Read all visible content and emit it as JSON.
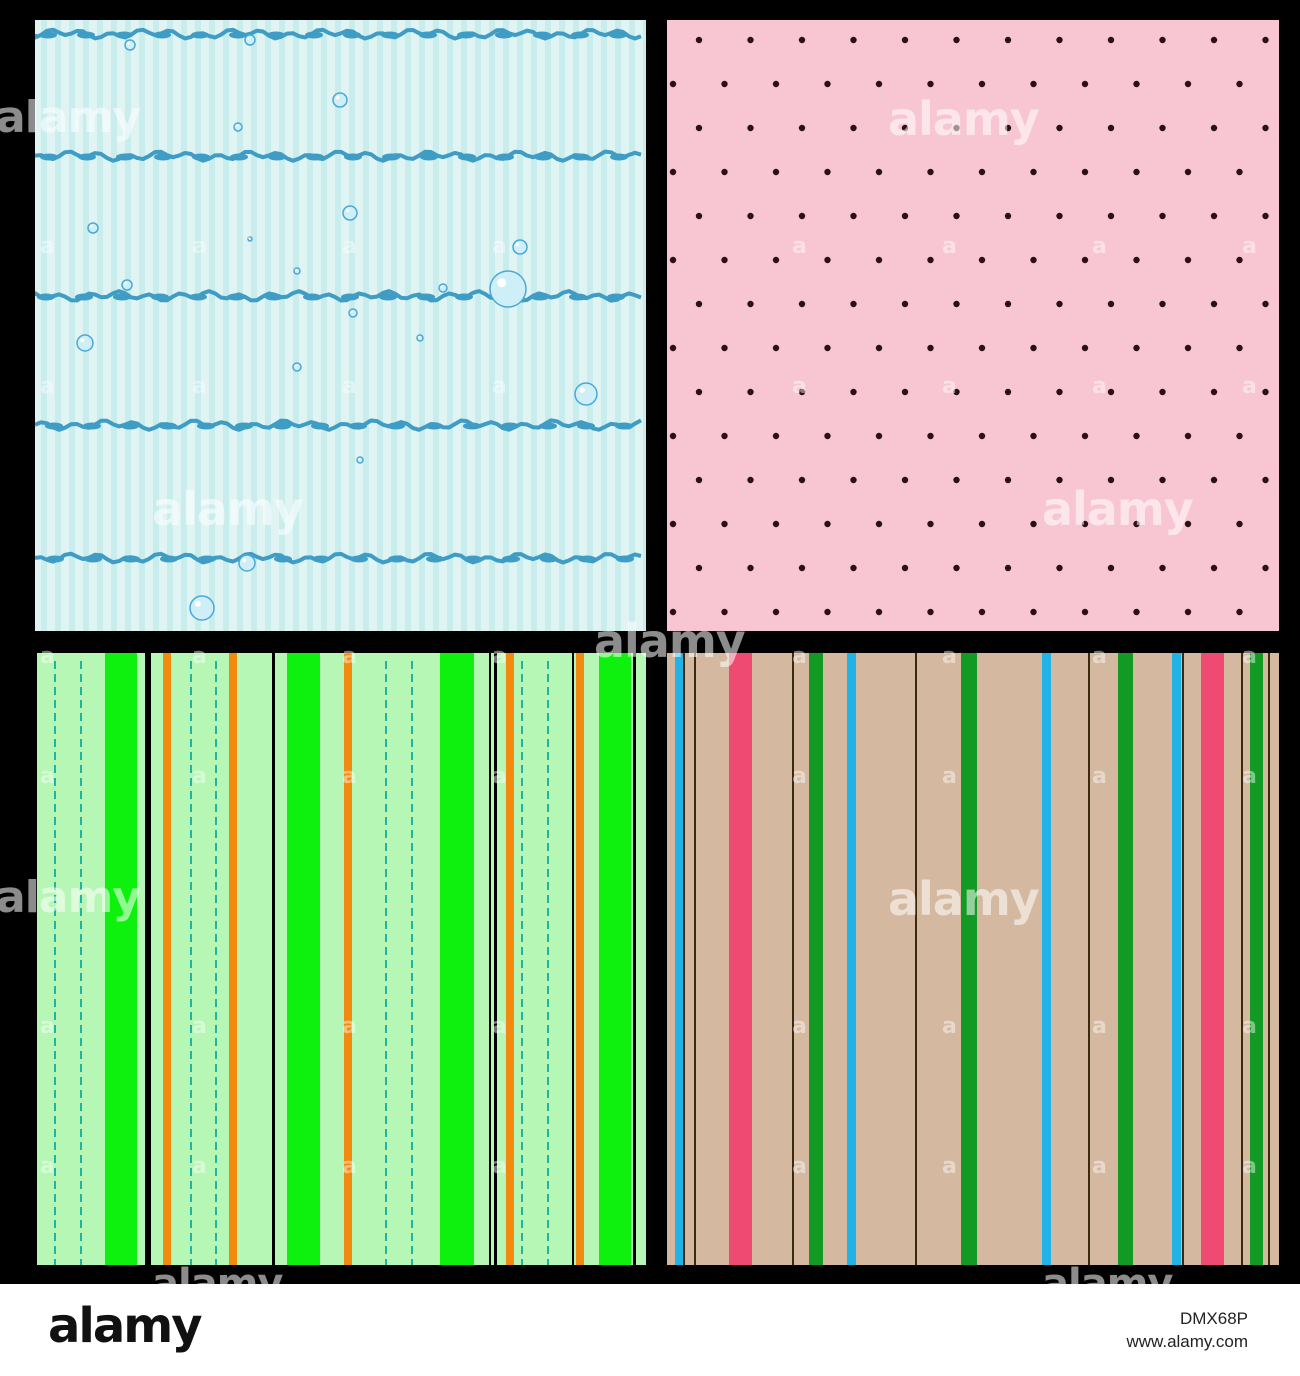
{
  "watermark": {
    "text": "alamy",
    "letter": "a"
  },
  "footer": {
    "logo": "alamy",
    "image_id": "DMX68P",
    "url": "www.alamy.com"
  },
  "patterns": {
    "water": {
      "background": "#dff4f3",
      "stripe": "#c9ecec",
      "wave": "#3e9cc5",
      "bubble": "#4aa8d8"
    },
    "dots": {
      "background": "#f8c6d2",
      "dot": "#2a1018"
    },
    "green_stripes": {
      "background": "#b6f7b6",
      "bright_green": "#0ef00e",
      "orange": "#f28a10",
      "dashed": "#20b5a0",
      "black": "#000000"
    },
    "beige_stripes": {
      "background": "#d4b9a0",
      "pink": "#ef4a72",
      "green": "#129a25",
      "blue": "#22b2e6",
      "dark": "#3a2a10"
    }
  }
}
